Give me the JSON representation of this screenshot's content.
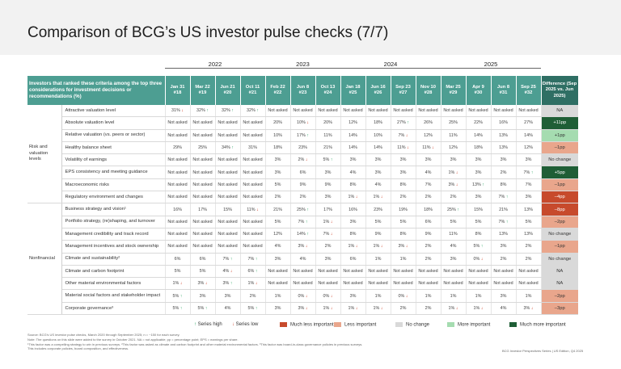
{
  "title": "Comparison of BCG’s US investor pulse checks (7/7)",
  "question_header": "Investors that ranked these criteria among the top three considerations for investment decisions or recommendations (%)",
  "years": [
    {
      "label": "2022",
      "span": 4
    },
    {
      "label": "2023",
      "span": 3
    },
    {
      "label": "2024",
      "span": 4
    },
    {
      "label": "2025",
      "span": 4
    }
  ],
  "columns": [
    "Jan 31\n#18",
    "Mar 22\n#19",
    "Jun 21\n#20",
    "Oct 11\n#21",
    "Feb 22\n#22",
    "Jun 8\n#23",
    "Oct 13\n#24",
    "Jan 18\n#25",
    "Jun 16\n#26",
    "Sep 23\n#27",
    "Nov 10\n#28",
    "Mar 25\n#29",
    "Apr 9\n#30",
    "Jun 8\n#31",
    "Sep 25\n#32"
  ],
  "diff_header": "Difference (Sep 2025 vs. Jun 2025)",
  "diff_colors": {
    "much_less": "#c74a2c",
    "less": "#e9a68c",
    "none": "#d9d9d9",
    "more": "#a5dcb0",
    "much_more": "#1f5e36"
  },
  "groups": [
    {
      "name": "Risk and valuation levels",
      "rows": [
        {
          "criterion": "Attractive valuation level",
          "values": [
            "31% ↓",
            "32% ↑",
            "32% ↑",
            "32% ↑",
            "Not asked",
            "Not asked",
            "Not asked",
            "Not asked",
            "Not asked",
            "Not asked",
            "Not asked",
            "Not asked",
            "Not asked",
            "Not asked",
            "Not asked"
          ],
          "diff": "NA",
          "diff_class": "none"
        },
        {
          "criterion": "Absolute valuation level",
          "values": [
            "Not asked",
            "Not asked",
            "Not asked",
            "Not asked",
            "20%",
            "10% ↓",
            "20%",
            "12%",
            "18%",
            "27% ↑",
            "26%",
            "25%",
            "22%",
            "16%",
            "27%"
          ],
          "diff": "+11pp",
          "diff_class": "much_more"
        },
        {
          "criterion": "Relative valuation (vs. peers or sector)",
          "values": [
            "Not asked",
            "Not asked",
            "Not asked",
            "Not asked",
            "10%",
            "17% ↑",
            "11%",
            "14%",
            "10%",
            "7% ↓",
            "12%",
            "11%",
            "14%",
            "13%",
            "14%"
          ],
          "diff": "+1pp",
          "diff_class": "more"
        },
        {
          "criterion": "Healthy balance sheet",
          "values": [
            "29%",
            "25%",
            "34% ↑",
            "31%",
            "18%",
            "23%",
            "21%",
            "14%",
            "14%",
            "11% ↓",
            "11% ↓",
            "12%",
            "18%",
            "13%",
            "12%"
          ],
          "diff": "–1pp",
          "diff_class": "less"
        },
        {
          "criterion": "Volatility of earnings",
          "values": [
            "Not asked",
            "Not asked",
            "Not asked",
            "Not asked",
            "3%",
            "2% ↓",
            "5% ↑",
            "3%",
            "3%",
            "3%",
            "3%",
            "3%",
            "3%",
            "3%",
            "3%"
          ],
          "diff": "No change",
          "diff_class": "none"
        },
        {
          "criterion": "EPS consistency and meeting guidance",
          "values": [
            "Not asked",
            "Not asked",
            "Not asked",
            "Not asked",
            "3%",
            "6%",
            "3%",
            "4%",
            "3%",
            "3%",
            "4%",
            "1% ↓",
            "3%",
            "2%",
            "7% ↑"
          ],
          "diff": "+5pp",
          "diff_class": "much_more"
        },
        {
          "criterion": "Macroeconomic risks",
          "values": [
            "Not asked",
            "Not asked",
            "Not asked",
            "Not asked",
            "5%",
            "9%",
            "9%",
            "8%",
            "4%",
            "8%",
            "7%",
            "3% ↓",
            "13% ↑",
            "8%",
            "7%"
          ],
          "diff": "–1pp",
          "diff_class": "less"
        },
        {
          "criterion": "Regulatory environment and changes",
          "values": [
            "Not asked",
            "Not asked",
            "Not asked",
            "Not asked",
            "2%",
            "2%",
            "3%",
            "1% ↓",
            "1% ↓",
            "2%",
            "2%",
            "2%",
            "3%",
            "7% ↑",
            "3%"
          ],
          "diff": "–4pp",
          "diff_class": "much_less"
        }
      ]
    },
    {
      "name": "Nonfinancial",
      "rows": [
        {
          "criterion": "Business strategy and vision¹",
          "values": [
            "16%",
            "17%",
            "15%",
            "11% ↓",
            "21%",
            "25% ↑",
            "17%",
            "16%",
            "23%",
            "19%",
            "18%",
            "25% ↑",
            "15%",
            "21%",
            "13%"
          ],
          "diff": "–8pp",
          "diff_class": "much_less"
        },
        {
          "criterion": "Portfolio strategy, (re)shaping, and turnover",
          "values": [
            "Not asked",
            "Not asked",
            "Not asked",
            "Not asked",
            "5%",
            "7% ↑",
            "1% ↓",
            "3%",
            "5%",
            "5%",
            "6%",
            "5%",
            "5%",
            "7% ↑",
            "5%"
          ],
          "diff": "–2pp",
          "diff_class": "less"
        },
        {
          "criterion": "Management credibility and track record",
          "values": [
            "Not asked",
            "Not asked",
            "Not asked",
            "Not asked",
            "12%",
            "14% ↑",
            "7% ↓",
            "8%",
            "9%",
            "8%",
            "9%",
            "11%",
            "8%",
            "13%",
            "13%"
          ],
          "diff": "No change",
          "diff_class": "none"
        },
        {
          "criterion": "Management incentives and stock ownership",
          "values": [
            "Not asked",
            "Not asked",
            "Not asked",
            "Not asked",
            "4%",
            "3% ↓",
            "2%",
            "1% ↓",
            "1% ↓",
            "3% ↓",
            "2%",
            "4%",
            "5% ↑",
            "3%",
            "2%"
          ],
          "diff": "–1pp",
          "diff_class": "less"
        },
        {
          "criterion": "Climate and sustainability²",
          "values": [
            "6%",
            "6%",
            "7% ↑",
            "7% ↑",
            "3%",
            "4%",
            "3%",
            "6%",
            "1%",
            "1%",
            "2%",
            "3%",
            "0% ↓",
            "2%",
            "2%"
          ],
          "diff": "No change",
          "diff_class": "none"
        },
        {
          "criterion": "Climate and carbon footprint",
          "values": [
            "5%",
            "5%",
            "4% ↓",
            "6% ↑",
            "Not asked",
            "Not asked",
            "Not asked",
            "Not asked",
            "Not asked",
            "Not asked",
            "Not asked",
            "Not asked",
            "Not asked",
            "Not asked",
            "Not asked"
          ],
          "diff": "NA",
          "diff_class": "none"
        },
        {
          "criterion": "Other material environmental factors",
          "values": [
            "1% ↓",
            "3% ↓",
            "3% ↑",
            "1% ↓",
            "Not asked",
            "Not asked",
            "Not asked",
            "Not asked",
            "Not asked",
            "Not asked",
            "Not asked",
            "Not asked",
            "Not asked",
            "Not asked",
            "Not asked"
          ],
          "diff": "NA",
          "diff_class": "none"
        },
        {
          "criterion": "Material social factors and stakeholder impact",
          "values": [
            "5% ↑",
            "3%",
            "3%",
            "2%",
            "1%",
            "0% ↓",
            "0% ↓",
            "3%",
            "1%",
            "0% ↓",
            "1%",
            "1%",
            "1%",
            "3%",
            "1%"
          ],
          "diff": "–2pp",
          "diff_class": "less"
        },
        {
          "criterion": "Corporate governance³",
          "values": [
            "5% ↑",
            "5% ↑",
            "4%",
            "5% ↑",
            "3%",
            "3% ↓",
            "1% ↓",
            "1% ↓",
            "1% ↓",
            "2%",
            "2%",
            "1% ↓",
            "1% ↓",
            "4%",
            "3% ↓"
          ],
          "diff": "–3pp",
          "diff_class": "less"
        }
      ]
    }
  ],
  "legend": {
    "series_high": "Series high",
    "series_low": "Series low",
    "items": [
      {
        "label": "Much less important",
        "color": "#c74a2c"
      },
      {
        "label": "Less important",
        "color": "#e9a68c"
      },
      {
        "label": "No change",
        "color": "#d9d9d9"
      },
      {
        "label": "More important",
        "color": "#a5dcb0"
      },
      {
        "label": "Much more important",
        "color": "#1f5e36"
      }
    ]
  },
  "footnotes": [
    "Source: BCG’s US investor pulse checks, March 2020 through September 2025; n = ~150 for each survey.",
    "Note: The questions on this slide were added to the survey in October 2021. NA = not applicable; pp = percentage point; EPS = earnings per share.",
    "¹This factor was a compelling strategy to win in previous surveys. ²This factor was asked as climate and carbon footprint and other material environmental factors. ³This factor was board-in-class governance policies in previous surveys.",
    "This includes corporate policies, board composition, and effectiveness."
  ],
  "source_label": "BCG Investor Perspectives Series | US Edition, Q4 2025"
}
